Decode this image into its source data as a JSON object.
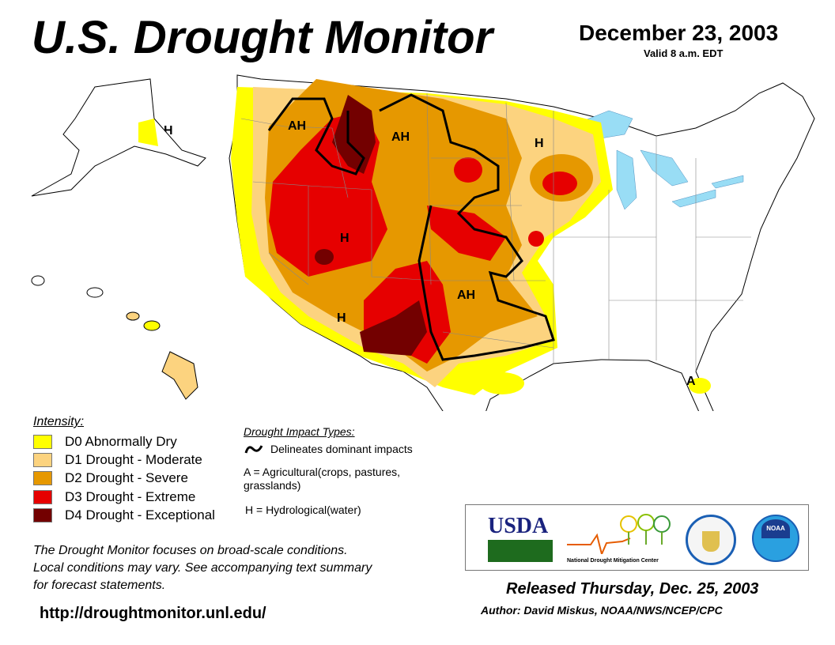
{
  "header": {
    "title": "U.S. Drought Monitor",
    "date": "December 23, 2003",
    "valid": "Valid 8 a.m. EDT"
  },
  "map": {
    "impact_labels": [
      "AH",
      "AH",
      "H",
      "H",
      "H",
      "AH",
      "A",
      "H"
    ]
  },
  "legend": {
    "intensity_title": "Intensity:",
    "items": [
      {
        "label": "D0 Abnormally Dry",
        "color": "#ffff00"
      },
      {
        "label": "D1 Drought - Moderate",
        "color": "#fcd37f"
      },
      {
        "label": "D2 Drought - Severe",
        "color": "#e69800"
      },
      {
        "label": "D3 Drought - Extreme",
        "color": "#e60000"
      },
      {
        "label": "D4 Drought - Exceptional",
        "color": "#730000"
      }
    ],
    "impact_title": "Drought Impact Types:",
    "impact_line": "Delineates dominant impacts",
    "impact_a": "A = Agricultural(crops, pastures, grasslands)",
    "impact_h": "H = Hydrological(water)"
  },
  "footer": {
    "note_lines": [
      "The Drought Monitor focuses on broad-scale conditions.",
      "Local conditions may vary. See accompanying text summary",
      "for forecast statements."
    ],
    "url": "http://droughtmonitor.unl.edu/",
    "released": "Released Thursday, Dec. 25, 2003",
    "author": "Author: David Miskus, NOAA/NWS/NCEP/CPC"
  },
  "logos": {
    "usda": "USDA",
    "ndmc": "National Drought Mitigation Center",
    "noaa": "NOAA"
  }
}
